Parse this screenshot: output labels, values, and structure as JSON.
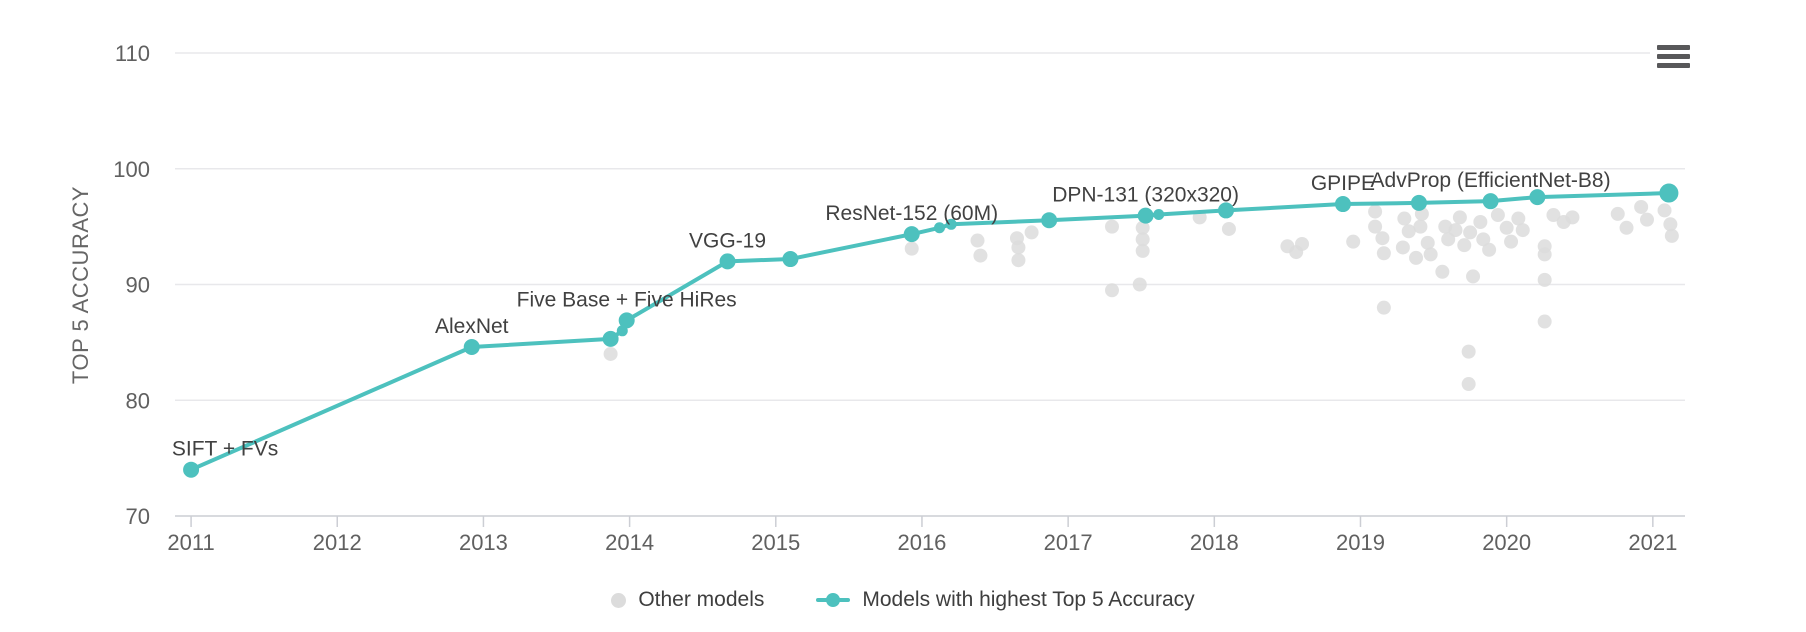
{
  "chart_data": {
    "type": "scatter",
    "title": "",
    "xlabel": "",
    "ylabel": "TOP 5 ACCURACY",
    "x_ticks": [
      2011,
      2012,
      2013,
      2014,
      2015,
      2016,
      2017,
      2018,
      2019,
      2020,
      2021
    ],
    "y_ticks": [
      70,
      80,
      90,
      100,
      110
    ],
    "xlim": [
      2010.89,
      2021.22
    ],
    "ylim": [
      70,
      110
    ],
    "grid": "horizontal-only",
    "legend_position": "bottom-center",
    "colors": {
      "highlight_series": "#4dc1be",
      "other_series": "#dcdcdc",
      "axis_text": "#606060",
      "data_label_text": "#414141",
      "gridline": "#e8e8eb",
      "axis_line": "#ccced4"
    },
    "series": [
      {
        "name": "Other models",
        "type": "scatter",
        "color": "#dcdcdc",
        "points": [
          [
            2013.87,
            84.0
          ],
          [
            2015.93,
            93.1
          ],
          [
            2016.38,
            93.8
          ],
          [
            2016.4,
            92.5
          ],
          [
            2016.65,
            94.0
          ],
          [
            2016.66,
            93.2
          ],
          [
            2016.66,
            92.1
          ],
          [
            2016.75,
            94.5
          ],
          [
            2017.3,
            95.0
          ],
          [
            2017.3,
            89.5
          ],
          [
            2017.49,
            90.0
          ],
          [
            2017.51,
            94.9
          ],
          [
            2017.51,
            93.9
          ],
          [
            2017.51,
            92.9
          ],
          [
            2017.9,
            95.8
          ],
          [
            2018.1,
            94.8
          ],
          [
            2018.5,
            93.3
          ],
          [
            2018.56,
            92.8
          ],
          [
            2018.6,
            93.5
          ],
          [
            2018.95,
            93.7
          ],
          [
            2019.1,
            96.3
          ],
          [
            2019.1,
            95.0
          ],
          [
            2019.15,
            94.0
          ],
          [
            2019.16,
            92.7
          ],
          [
            2019.16,
            88.0
          ],
          [
            2019.3,
            95.7
          ],
          [
            2019.33,
            94.6
          ],
          [
            2019.29,
            93.2
          ],
          [
            2019.38,
            92.3
          ],
          [
            2019.41,
            95.0
          ],
          [
            2019.42,
            96.1
          ],
          [
            2019.46,
            93.6
          ],
          [
            2019.48,
            92.6
          ],
          [
            2019.56,
            91.1
          ],
          [
            2019.58,
            95.0
          ],
          [
            2019.6,
            93.9
          ],
          [
            2019.65,
            94.7
          ],
          [
            2019.68,
            95.8
          ],
          [
            2019.71,
            93.4
          ],
          [
            2019.75,
            94.5
          ],
          [
            2019.77,
            90.7
          ],
          [
            2019.74,
            84.2
          ],
          [
            2019.74,
            81.4
          ],
          [
            2019.82,
            95.4
          ],
          [
            2019.84,
            93.9
          ],
          [
            2019.88,
            93.0
          ],
          [
            2019.94,
            96.0
          ],
          [
            2020.0,
            94.9
          ],
          [
            2020.03,
            93.7
          ],
          [
            2020.08,
            95.7
          ],
          [
            2020.11,
            94.7
          ],
          [
            2020.26,
            93.3
          ],
          [
            2020.26,
            92.6
          ],
          [
            2020.26,
            90.4
          ],
          [
            2020.26,
            86.8
          ],
          [
            2020.32,
            96.0
          ],
          [
            2020.39,
            95.4
          ],
          [
            2020.45,
            95.8
          ],
          [
            2020.76,
            96.1
          ],
          [
            2020.82,
            94.9
          ],
          [
            2020.92,
            96.7
          ],
          [
            2020.96,
            95.6
          ],
          [
            2021.08,
            96.4
          ],
          [
            2021.12,
            95.2
          ],
          [
            2021.13,
            94.2
          ]
        ]
      },
      {
        "name": "Models with highest Top 5 Accuracy",
        "type": "line",
        "color": "#4dc1be",
        "points": [
          {
            "x": 2011.0,
            "y": 74.0,
            "label": "SIFT + FVs",
            "label_dx": 34,
            "size": "normal"
          },
          {
            "x": 2012.92,
            "y": 84.6,
            "label": "AlexNet",
            "size": "normal"
          },
          {
            "x": 2013.87,
            "y": 85.3,
            "size": "normal"
          },
          {
            "x": 2013.95,
            "y": 86.0,
            "size": "small"
          },
          {
            "x": 2013.98,
            "y": 86.9,
            "label": "Five Base + Five HiRes",
            "size": "normal"
          },
          {
            "x": 2014.67,
            "y": 92.0,
            "label": "VGG-19",
            "size": "normal"
          },
          {
            "x": 2015.1,
            "y": 92.2,
            "size": "normal"
          },
          {
            "x": 2015.93,
            "y": 94.35,
            "label": "ResNet-152 (60M)",
            "size": "normal"
          },
          {
            "x": 2016.12,
            "y": 94.9,
            "size": "small"
          },
          {
            "x": 2016.2,
            "y": 95.2,
            "size": "small"
          },
          {
            "x": 2016.87,
            "y": 95.55,
            "size": "normal"
          },
          {
            "x": 2017.53,
            "y": 95.95,
            "label": "DPN-131 (320x320)",
            "size": "normal"
          },
          {
            "x": 2017.62,
            "y": 96.05,
            "size": "small"
          },
          {
            "x": 2018.08,
            "y": 96.4,
            "size": "normal"
          },
          {
            "x": 2018.88,
            "y": 96.95,
            "label": "GPIPE",
            "size": "normal"
          },
          {
            "x": 2019.4,
            "y": 97.05,
            "size": "normal"
          },
          {
            "x": 2019.89,
            "y": 97.2,
            "label": "AdvProp (EfficientNet-B8)",
            "size": "normal"
          },
          {
            "x": 2020.21,
            "y": 97.55,
            "size": "normal"
          },
          {
            "x": 2021.11,
            "y": 97.9,
            "size": "large"
          }
        ]
      }
    ]
  },
  "toolbar": {
    "context_menu_icon": "hamburger-menu-icon"
  }
}
